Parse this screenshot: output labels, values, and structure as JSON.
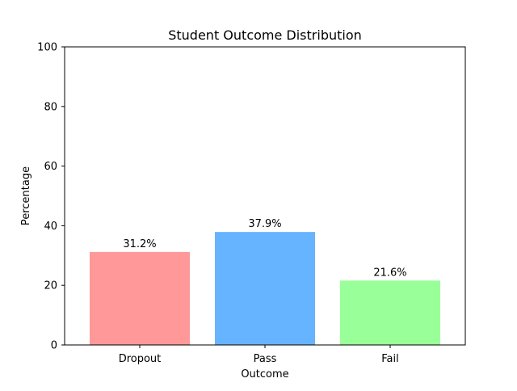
{
  "chart_data": {
    "type": "bar",
    "title": "Student Outcome Distribution",
    "xlabel": "Outcome",
    "ylabel": "Percentage",
    "categories": [
      "Dropout",
      "Pass",
      "Fail"
    ],
    "values": [
      31.2,
      37.9,
      21.6
    ],
    "data_labels": [
      "31.2%",
      "37.9%",
      "21.6%"
    ],
    "colors": [
      "#ff9999",
      "#66b3ff",
      "#99ff99"
    ],
    "ylim": [
      0,
      100
    ],
    "yticks": [
      0,
      20,
      40,
      60,
      80,
      100
    ],
    "ytick_labels": [
      "0",
      "20",
      "40",
      "60",
      "80",
      "100"
    ],
    "grid": false,
    "legend": "none"
  }
}
